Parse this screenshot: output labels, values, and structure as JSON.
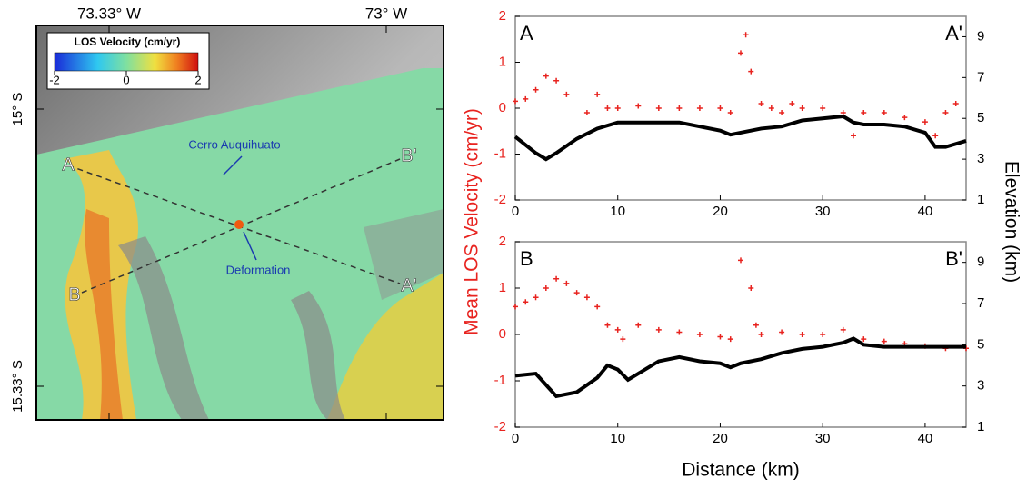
{
  "map": {
    "lon_labels": [
      "73.33° W",
      "73° W"
    ],
    "lat_labels": [
      "15° S",
      "15.33° S"
    ],
    "colorbar": {
      "title": "LOS Velocity (cm/yr)",
      "lim": [
        -2,
        2
      ],
      "ticks": [
        -2,
        0,
        2
      ]
    },
    "profile_labels": [
      "A",
      "A'",
      "B",
      "B'"
    ],
    "annotations": [
      "Cerro Auquihuato",
      "Deformation"
    ]
  },
  "chart_data": [
    {
      "type": "scatter",
      "annotations": [
        "A",
        "A'"
      ],
      "ylabel": "Mean LOS Velocity (cm/yr)",
      "y2label": "Elevation (km)",
      "xlim": [
        0,
        44
      ],
      "xticks": [
        0,
        10,
        20,
        30,
        40
      ],
      "ylim": [
        -2,
        2
      ],
      "yticks": [
        -2,
        -1,
        0,
        1,
        2
      ],
      "y2lim": [
        1,
        10
      ],
      "y2ticks": [
        1,
        3,
        5,
        7,
        9
      ],
      "series": [
        {
          "color": "#e8231f",
          "x": [
            0,
            1,
            2,
            3,
            4,
            5,
            7,
            8,
            9,
            10,
            12,
            14,
            16,
            18,
            20,
            21,
            22,
            22.5,
            23,
            24,
            25,
            26,
            27,
            28,
            30,
            32,
            33,
            34,
            36,
            38,
            40,
            41,
            42,
            43
          ],
          "values": [
            0.15,
            0.2,
            0.4,
            0.7,
            0.6,
            0.3,
            -0.1,
            0.3,
            0.0,
            0.0,
            0.05,
            0.0,
            0.0,
            0.0,
            0.0,
            -0.1,
            1.2,
            1.6,
            0.8,
            0.1,
            0.0,
            -0.1,
            0.1,
            0.0,
            0.0,
            -0.1,
            -0.6,
            -0.1,
            -0.1,
            -0.2,
            -0.3,
            -0.6,
            -0.1,
            0.1
          ]
        },
        {
          "color": "#000000",
          "axis": "y2",
          "x": [
            0,
            2,
            3,
            4,
            6,
            8,
            10,
            12,
            14,
            16,
            18,
            20,
            21,
            22,
            24,
            26,
            28,
            30,
            32,
            33,
            34,
            36,
            38,
            40,
            41,
            42,
            44
          ],
          "values": [
            4.1,
            3.3,
            3.0,
            3.3,
            4.0,
            4.5,
            4.8,
            4.8,
            4.8,
            4.8,
            4.6,
            4.4,
            4.2,
            4.3,
            4.5,
            4.6,
            4.9,
            5.0,
            5.1,
            4.8,
            4.7,
            4.7,
            4.6,
            4.3,
            3.6,
            3.6,
            3.9
          ]
        }
      ]
    },
    {
      "type": "scatter",
      "annotations": [
        "B",
        "B'"
      ],
      "xlabel": "Distance (km)",
      "xlim": [
        0,
        44
      ],
      "xticks": [
        0,
        10,
        20,
        30,
        40
      ],
      "ylim": [
        -2,
        2
      ],
      "yticks": [
        -2,
        -1,
        0,
        1,
        2
      ],
      "y2lim": [
        1,
        10
      ],
      "y2ticks": [
        1,
        3,
        5,
        7,
        9
      ],
      "series": [
        {
          "color": "#e8231f",
          "x": [
            0,
            1,
            2,
            3,
            4,
            5,
            6,
            7,
            8,
            9,
            10,
            10.5,
            12,
            14,
            16,
            18,
            20,
            21,
            22,
            23,
            23.5,
            24,
            26,
            28,
            30,
            32,
            34,
            36,
            38,
            40,
            42,
            44
          ],
          "values": [
            0.6,
            0.7,
            0.8,
            1.0,
            1.2,
            1.1,
            0.9,
            0.8,
            0.6,
            0.2,
            0.1,
            -0.1,
            0.2,
            0.1,
            0.05,
            0.0,
            -0.05,
            -0.1,
            1.6,
            1.0,
            0.2,
            0.0,
            0.05,
            0.0,
            0.0,
            0.1,
            -0.1,
            -0.15,
            -0.2,
            -0.25,
            -0.3,
            -0.3
          ]
        },
        {
          "color": "#000000",
          "axis": "y2",
          "x": [
            0,
            2,
            4,
            6,
            8,
            9,
            10,
            11,
            12,
            14,
            16,
            18,
            20,
            21,
            22,
            24,
            26,
            28,
            30,
            32,
            33,
            34,
            36,
            38,
            40,
            42,
            44
          ],
          "values": [
            3.5,
            3.6,
            2.5,
            2.7,
            3.4,
            4.0,
            3.8,
            3.3,
            3.6,
            4.2,
            4.4,
            4.2,
            4.1,
            3.9,
            4.1,
            4.3,
            4.6,
            4.8,
            4.9,
            5.1,
            5.3,
            5.0,
            4.9,
            4.9,
            4.9,
            4.9,
            4.9
          ]
        }
      ]
    }
  ]
}
